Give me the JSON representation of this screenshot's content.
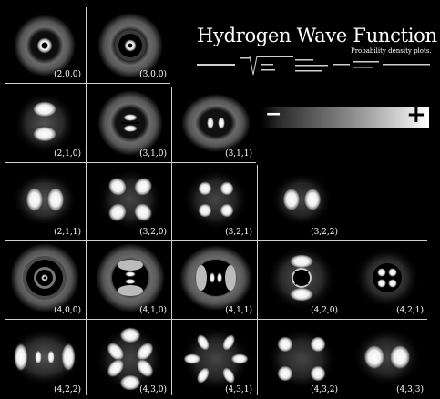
{
  "title": "Hydrogen Wave Function",
  "subtitle": "Probability density plots.",
  "legend": {
    "minus": "−",
    "plus": "+"
  },
  "orbitals": [
    {
      "label": "(2,0,0)"
    },
    {
      "label": "(3,0,0)"
    },
    {
      "label": "(2,1,0)"
    },
    {
      "label": "(3,1,0)"
    },
    {
      "label": "(3,1,1)"
    },
    {
      "label": "(2,1,1)"
    },
    {
      "label": "(3,2,0)"
    },
    {
      "label": "(3,2,1)"
    },
    {
      "label": "(3,2,2)"
    },
    {
      "label": "(4,0,0)"
    },
    {
      "label": "(4,1,0)"
    },
    {
      "label": "(4,1,1)"
    },
    {
      "label": "(4,2,0)"
    },
    {
      "label": "(4,2,1)"
    },
    {
      "label": "(4,2,2)"
    },
    {
      "label": "(4,3,0)"
    },
    {
      "label": "(4,3,1)"
    },
    {
      "label": "(4,3,2)"
    },
    {
      "label": "(4,3,3)"
    }
  ]
}
